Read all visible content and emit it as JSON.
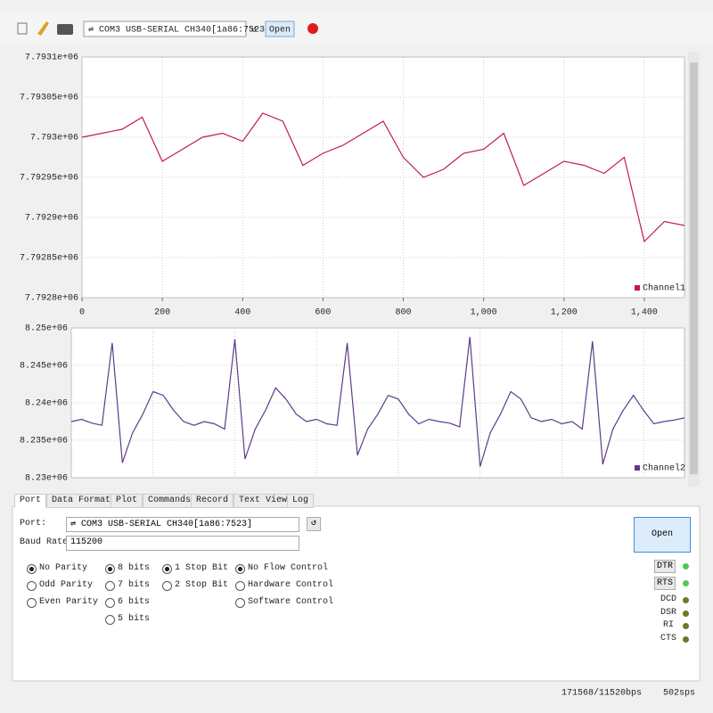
{
  "toolbar": {
    "port_select": "⇌ COM3 USB-SERIAL CH340[1a86:7523]",
    "open_button": "Open"
  },
  "chart_data": [
    {
      "type": "line",
      "x": [
        0,
        50,
        100,
        150,
        200,
        250,
        300,
        350,
        400,
        450,
        500,
        550,
        600,
        650,
        700,
        750,
        800,
        850,
        900,
        950,
        1000,
        1050,
        1100,
        1150,
        1200,
        1250,
        1300,
        1350,
        1400,
        1450,
        1500
      ],
      "series": [
        {
          "name": "Channel1",
          "color": "#c2185b",
          "values": [
            7793000,
            7793005,
            7793010,
            7793025,
            7792970,
            7792985,
            7793000,
            7793005,
            7792995,
            7793030,
            7793020,
            7792965,
            7792980,
            7792990,
            7793005,
            7793020,
            7792975,
            7792950,
            7792960,
            7792980,
            7792985,
            7793005,
            7792940,
            7792955,
            7792970,
            7792965,
            7792955,
            7792975,
            7792870,
            7792895,
            7792890
          ]
        }
      ],
      "xlim": [
        0,
        1500
      ],
      "xticks": [
        0,
        200,
        400,
        600,
        800,
        {
          "value": 1000,
          "label": "1,000"
        },
        {
          "value": 1200,
          "label": "1,200"
        },
        {
          "value": 1400,
          "label": "1,400"
        }
      ],
      "ylim": [
        7792800,
        7793100
      ],
      "yticks": [
        {
          "value": 7792800,
          "label": "7.7928e+06"
        },
        {
          "value": 7792850,
          "label": "7.79285e+06"
        },
        {
          "value": 7792900,
          "label": "7.7929e+06"
        },
        {
          "value": 7792950,
          "label": "7.79295e+06"
        },
        {
          "value": 7793000,
          "label": "7.793e+06"
        },
        {
          "value": 7793050,
          "label": "7.79305e+06"
        },
        {
          "value": 7793100,
          "label": "7.7931e+06"
        }
      ],
      "grid": true,
      "legend": "lower right"
    },
    {
      "type": "line",
      "x": [
        0,
        25,
        50,
        75,
        100,
        125,
        150,
        175,
        200,
        225,
        250,
        275,
        300,
        325,
        350,
        375,
        400,
        425,
        450,
        475,
        500,
        525,
        550,
        575,
        600,
        625,
        650,
        675,
        700,
        725,
        750,
        775,
        800,
        825,
        850,
        875,
        900,
        925,
        950,
        975,
        1000,
        1025,
        1050,
        1075,
        1100,
        1125,
        1150,
        1175,
        1200,
        1225,
        1250,
        1275,
        1300,
        1325,
        1350,
        1375,
        1400,
        1425,
        1450,
        1475,
        1500
      ],
      "series": [
        {
          "name": "Channel2",
          "color": "#5e3a8c",
          "values": [
            8237500,
            8237800,
            8237300,
            8237000,
            8248000,
            8232000,
            8236000,
            8238500,
            8241500,
            8241000,
            8239000,
            8237500,
            8237000,
            8237500,
            8237200,
            8236500,
            8248500,
            8232500,
            8236500,
            8239000,
            8242000,
            8240500,
            8238500,
            8237500,
            8237800,
            8237200,
            8237000,
            8248000,
            8233000,
            8236500,
            8238500,
            8241000,
            8240500,
            8238500,
            8237200,
            8237800,
            8237500,
            8237300,
            8236800,
            8248800,
            8231500,
            8236000,
            8238500,
            8241500,
            8240500,
            8238000,
            8237500,
            8237800,
            8237200,
            8237500,
            8236500,
            8248200,
            8231800,
            8236500,
            8239000,
            8241000,
            8239000,
            8237200,
            8237500,
            8237700,
            8238000
          ]
        }
      ],
      "xlim": [
        0,
        1500
      ],
      "ylim": [
        8230000,
        8250000
      ],
      "yticks": [
        {
          "value": 8230000,
          "label": "8.23e+06"
        },
        {
          "value": 8235000,
          "label": "8.235e+06"
        },
        {
          "value": 8240000,
          "label": "8.24e+06"
        },
        {
          "value": 8245000,
          "label": "8.245e+06"
        },
        {
          "value": 8250000,
          "label": "8.25e+06"
        }
      ],
      "grid": true,
      "legend": "lower right"
    }
  ],
  "tabs": [
    "Port",
    "Data Format",
    "Plot",
    "Commands",
    "Record",
    "Text View",
    "Log"
  ],
  "port_panel": {
    "port_label": "Port:",
    "port_value": "⇌ COM3 USB-SERIAL CH340[1a86:7523]",
    "baud_label": "Baud Rate:",
    "baud_value": "115200",
    "groups": [
      {
        "options": [
          "No Parity",
          "Odd Parity",
          "Even Parity"
        ],
        "selected": 0
      },
      {
        "options": [
          "8 bits",
          "7 bits",
          "6 bits",
          "5 bits"
        ],
        "selected": 0
      },
      {
        "options": [
          "1 Stop Bit",
          "2 Stop Bit"
        ],
        "selected": 0
      },
      {
        "options": [
          "No Flow Control",
          "Hardware Control",
          "Software Control"
        ],
        "selected": 0
      }
    ],
    "open_button": "Open",
    "pins": [
      {
        "name": "DTR",
        "button": true,
        "led": "#4fc94f"
      },
      {
        "name": "RTS",
        "button": true,
        "led": "#4fc94f"
      },
      {
        "name": "DCD",
        "button": false,
        "led": "#6b7a2a"
      },
      {
        "name": "DSR",
        "button": false,
        "led": "#6b7a2a"
      },
      {
        "name": "RI",
        "button": false,
        "led": "#6b7a2a"
      },
      {
        "name": "CTS",
        "button": false,
        "led": "#6b7a2a"
      }
    ]
  },
  "status_bar": {
    "rate": "171568/11520bps",
    "samples": "502sps"
  }
}
